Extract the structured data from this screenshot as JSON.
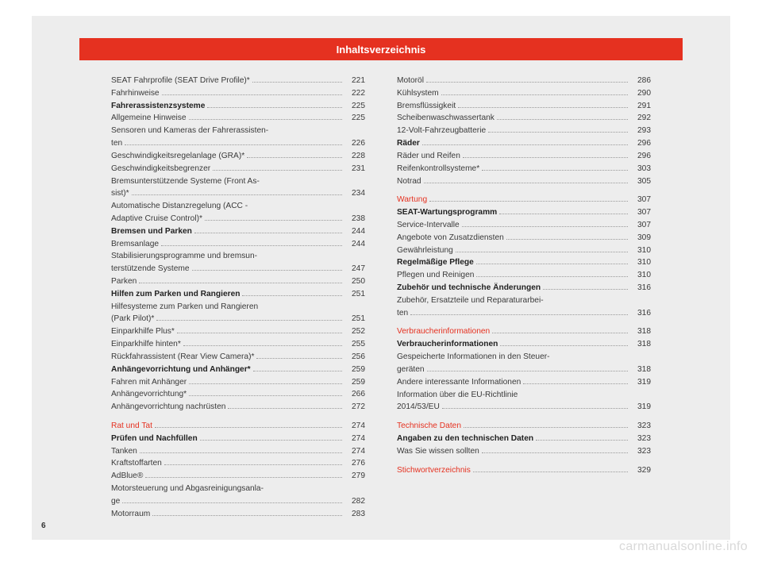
{
  "header": {
    "title": "Inhaltsverzeichnis"
  },
  "page_number": "6",
  "watermark": "carmanualsonline.info",
  "colors": {
    "accent": "#e53120",
    "page_bg": "#ededed",
    "text": "#3a3a3a",
    "dots": "#999999"
  },
  "col1": [
    {
      "label": "SEAT Fahrprofile (SEAT Drive Profile)*",
      "page": "221",
      "style": "normal"
    },
    {
      "label": "Fahrhinweise",
      "page": "222",
      "style": "normal"
    },
    {
      "label": "Fahrerassistenzsysteme",
      "page": "225",
      "style": "bold"
    },
    {
      "label": "Allgemeine Hinweise",
      "page": "225",
      "style": "normal"
    },
    {
      "label": "Sensoren und Kameras der Fahrerassisten-",
      "page": "",
      "style": "normal",
      "nodots": true
    },
    {
      "label": "ten",
      "page": "226",
      "style": "normal"
    },
    {
      "label": "Geschwindigkeitsregelanlage (GRA)*",
      "page": "228",
      "style": "normal"
    },
    {
      "label": "Geschwindigkeitsbegrenzer",
      "page": "231",
      "style": "normal"
    },
    {
      "label": "Bremsunterstützende Systeme (Front As-",
      "page": "",
      "style": "normal",
      "nodots": true
    },
    {
      "label": "sist)*",
      "page": "234",
      "style": "normal"
    },
    {
      "label": "Automatische Distanzregelung (ACC -",
      "page": "",
      "style": "normal",
      "nodots": true
    },
    {
      "label": "Adaptive Cruise Control)*",
      "page": "238",
      "style": "normal"
    },
    {
      "label": "Bremsen und Parken",
      "page": "244",
      "style": "bold"
    },
    {
      "label": "Bremsanlage",
      "page": "244",
      "style": "normal"
    },
    {
      "label": "Stabilisierungsprogramme und bremsun-",
      "page": "",
      "style": "normal",
      "nodots": true
    },
    {
      "label": "terstützende Systeme",
      "page": "247",
      "style": "normal"
    },
    {
      "label": "Parken",
      "page": "250",
      "style": "normal"
    },
    {
      "label": "Hilfen zum Parken und Rangieren",
      "page": "251",
      "style": "bold"
    },
    {
      "label": "Hilfesysteme zum Parken und Rangieren",
      "page": "",
      "style": "normal",
      "nodots": true
    },
    {
      "label": "(Park Pilot)*",
      "page": "251",
      "style": "normal"
    },
    {
      "label": "Einparkhilfe Plus*",
      "page": "252",
      "style": "normal"
    },
    {
      "label": "Einparkhilfe hinten*",
      "page": "255",
      "style": "normal"
    },
    {
      "label": "Rückfahrassistent (Rear View Camera)*",
      "page": "256",
      "style": "normal"
    },
    {
      "label": "Anhängevorrichtung und Anhänger*",
      "page": "259",
      "style": "bold"
    },
    {
      "label": "Fahren mit Anhänger",
      "page": "259",
      "style": "normal"
    },
    {
      "label": "Anhängevorrichtung*",
      "page": "266",
      "style": "normal"
    },
    {
      "label": "Anhängevorrichtung nachrüsten",
      "page": "272",
      "style": "normal"
    },
    {
      "spacer": true
    },
    {
      "label": "Rat und Tat",
      "page": "274",
      "style": "section"
    },
    {
      "label": "Prüfen und Nachfüllen",
      "page": "274",
      "style": "bold"
    },
    {
      "label": "Tanken",
      "page": "274",
      "style": "normal"
    },
    {
      "label": "Kraftstoffarten",
      "page": "276",
      "style": "normal"
    },
    {
      "label": "AdBlue®",
      "page": "279",
      "style": "normal"
    },
    {
      "label": "Motorsteuerung und Abgasreinigungsanla-",
      "page": "",
      "style": "normal",
      "nodots": true
    },
    {
      "label": "ge",
      "page": "282",
      "style": "normal"
    },
    {
      "label": "Motorraum",
      "page": "283",
      "style": "normal"
    }
  ],
  "col2": [
    {
      "label": "Motoröl",
      "page": "286",
      "style": "normal"
    },
    {
      "label": "Kühlsystem",
      "page": "290",
      "style": "normal"
    },
    {
      "label": "Bremsflüssigkeit",
      "page": "291",
      "style": "normal"
    },
    {
      "label": "Scheibenwaschwassertank",
      "page": "292",
      "style": "normal"
    },
    {
      "label": "12-Volt-Fahrzeugbatterie",
      "page": "293",
      "style": "normal"
    },
    {
      "label": "Räder",
      "page": "296",
      "style": "bold"
    },
    {
      "label": "Räder und Reifen",
      "page": "296",
      "style": "normal"
    },
    {
      "label": "Reifenkontrollsysteme*",
      "page": "303",
      "style": "normal"
    },
    {
      "label": "Notrad",
      "page": "305",
      "style": "normal"
    },
    {
      "spacer": true
    },
    {
      "label": "Wartung",
      "page": "307",
      "style": "section"
    },
    {
      "label": "SEAT-Wartungsprogramm",
      "page": "307",
      "style": "bold"
    },
    {
      "label": "Service-Intervalle",
      "page": "307",
      "style": "normal"
    },
    {
      "label": "Angebote von Zusatzdiensten",
      "page": "309",
      "style": "normal"
    },
    {
      "label": "Gewährleistung",
      "page": "310",
      "style": "normal"
    },
    {
      "label": "Regelmäßige Pflege",
      "page": "310",
      "style": "bold"
    },
    {
      "label": "Pflegen und Reinigen",
      "page": "310",
      "style": "normal"
    },
    {
      "label": "Zubehör und technische Änderungen",
      "page": "316",
      "style": "bold"
    },
    {
      "label": "Zubehör, Ersatzteile und Reparaturarbei-",
      "page": "",
      "style": "normal",
      "nodots": true
    },
    {
      "label": "ten",
      "page": "316",
      "style": "normal"
    },
    {
      "spacer": true
    },
    {
      "label": "Verbraucherinformationen",
      "page": "318",
      "style": "section"
    },
    {
      "label": "Verbraucherinformationen",
      "page": "318",
      "style": "bold"
    },
    {
      "label": "Gespeicherte Informationen in den Steuer-",
      "page": "",
      "style": "normal",
      "nodots": true
    },
    {
      "label": "geräten",
      "page": "318",
      "style": "normal"
    },
    {
      "label": "Andere interessante Informationen",
      "page": "319",
      "style": "normal"
    },
    {
      "label": "Information über die EU-Richtlinie",
      "page": "",
      "style": "normal",
      "nodots": true
    },
    {
      "label": "2014/53/EU",
      "page": "319",
      "style": "normal"
    },
    {
      "spacer": true
    },
    {
      "label": "Technische Daten",
      "page": "323",
      "style": "section"
    },
    {
      "label": "Angaben zu den technischen Daten",
      "page": "323",
      "style": "bold"
    },
    {
      "label": "Was Sie wissen sollten",
      "page": "323",
      "style": "normal"
    },
    {
      "spacer": true
    },
    {
      "label": "Stichwortverzeichnis",
      "page": "329",
      "style": "section"
    }
  ]
}
